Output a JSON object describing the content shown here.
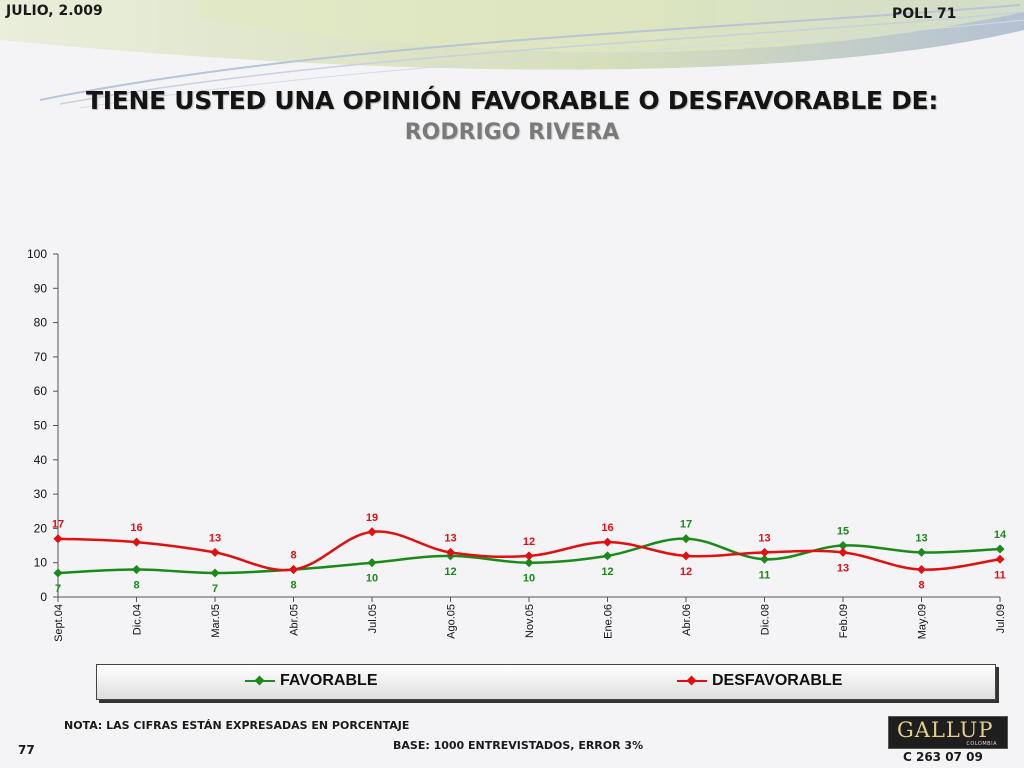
{
  "header": {
    "date": "JULIO, 2.009",
    "poll": "POLL 71",
    "title": "TIENE USTED UNA OPINIÓN FAVORABLE O DESFAVORABLE DE:",
    "subtitle": "RODRIGO RIVERA"
  },
  "chart_data": {
    "type": "line",
    "title": "TIENE USTED UNA OPINIÓN FAVORABLE O DESFAVORABLE DE:",
    "subtitle": "RODRIGO RIVERA",
    "categories": [
      "Sept.04",
      "Dic.04",
      "Mar.05",
      "Abr.05",
      "Jul.05",
      "Ago.05",
      "Nov.05",
      "Ene.06",
      "Abr.06",
      "Dic.08",
      "Feb.09",
      "May.09",
      "Jul.09"
    ],
    "series": [
      {
        "name": "FAVORABLE",
        "color": "#1a8a1a",
        "values": [
          7,
          8,
          7,
          8,
          10,
          12,
          10,
          12,
          17,
          11,
          15,
          13,
          14
        ]
      },
      {
        "name": "DESFAVORABLE",
        "color": "#e01010",
        "values": [
          17,
          16,
          13,
          8,
          19,
          13,
          12,
          16,
          12,
          13,
          13,
          8,
          11
        ]
      }
    ],
    "ylim": [
      0,
      100
    ],
    "yticks": [
      0,
      10,
      20,
      30,
      40,
      50,
      60,
      70,
      80,
      90,
      100
    ],
    "xlabel": "",
    "ylabel": "",
    "grid": false,
    "legend": "bottom",
    "data_labels": true
  },
  "footer": {
    "note": "NOTA: LAS CIFRAS ESTÁN EXPRESADAS EN PORCENTAJE",
    "base": "BASE: 1000 ENTREVISTADOS, ERROR 3%",
    "page": "77",
    "code": "C 263 07 09",
    "logo_text": "GALLUP",
    "logo_sub": "COLOMBIA"
  }
}
